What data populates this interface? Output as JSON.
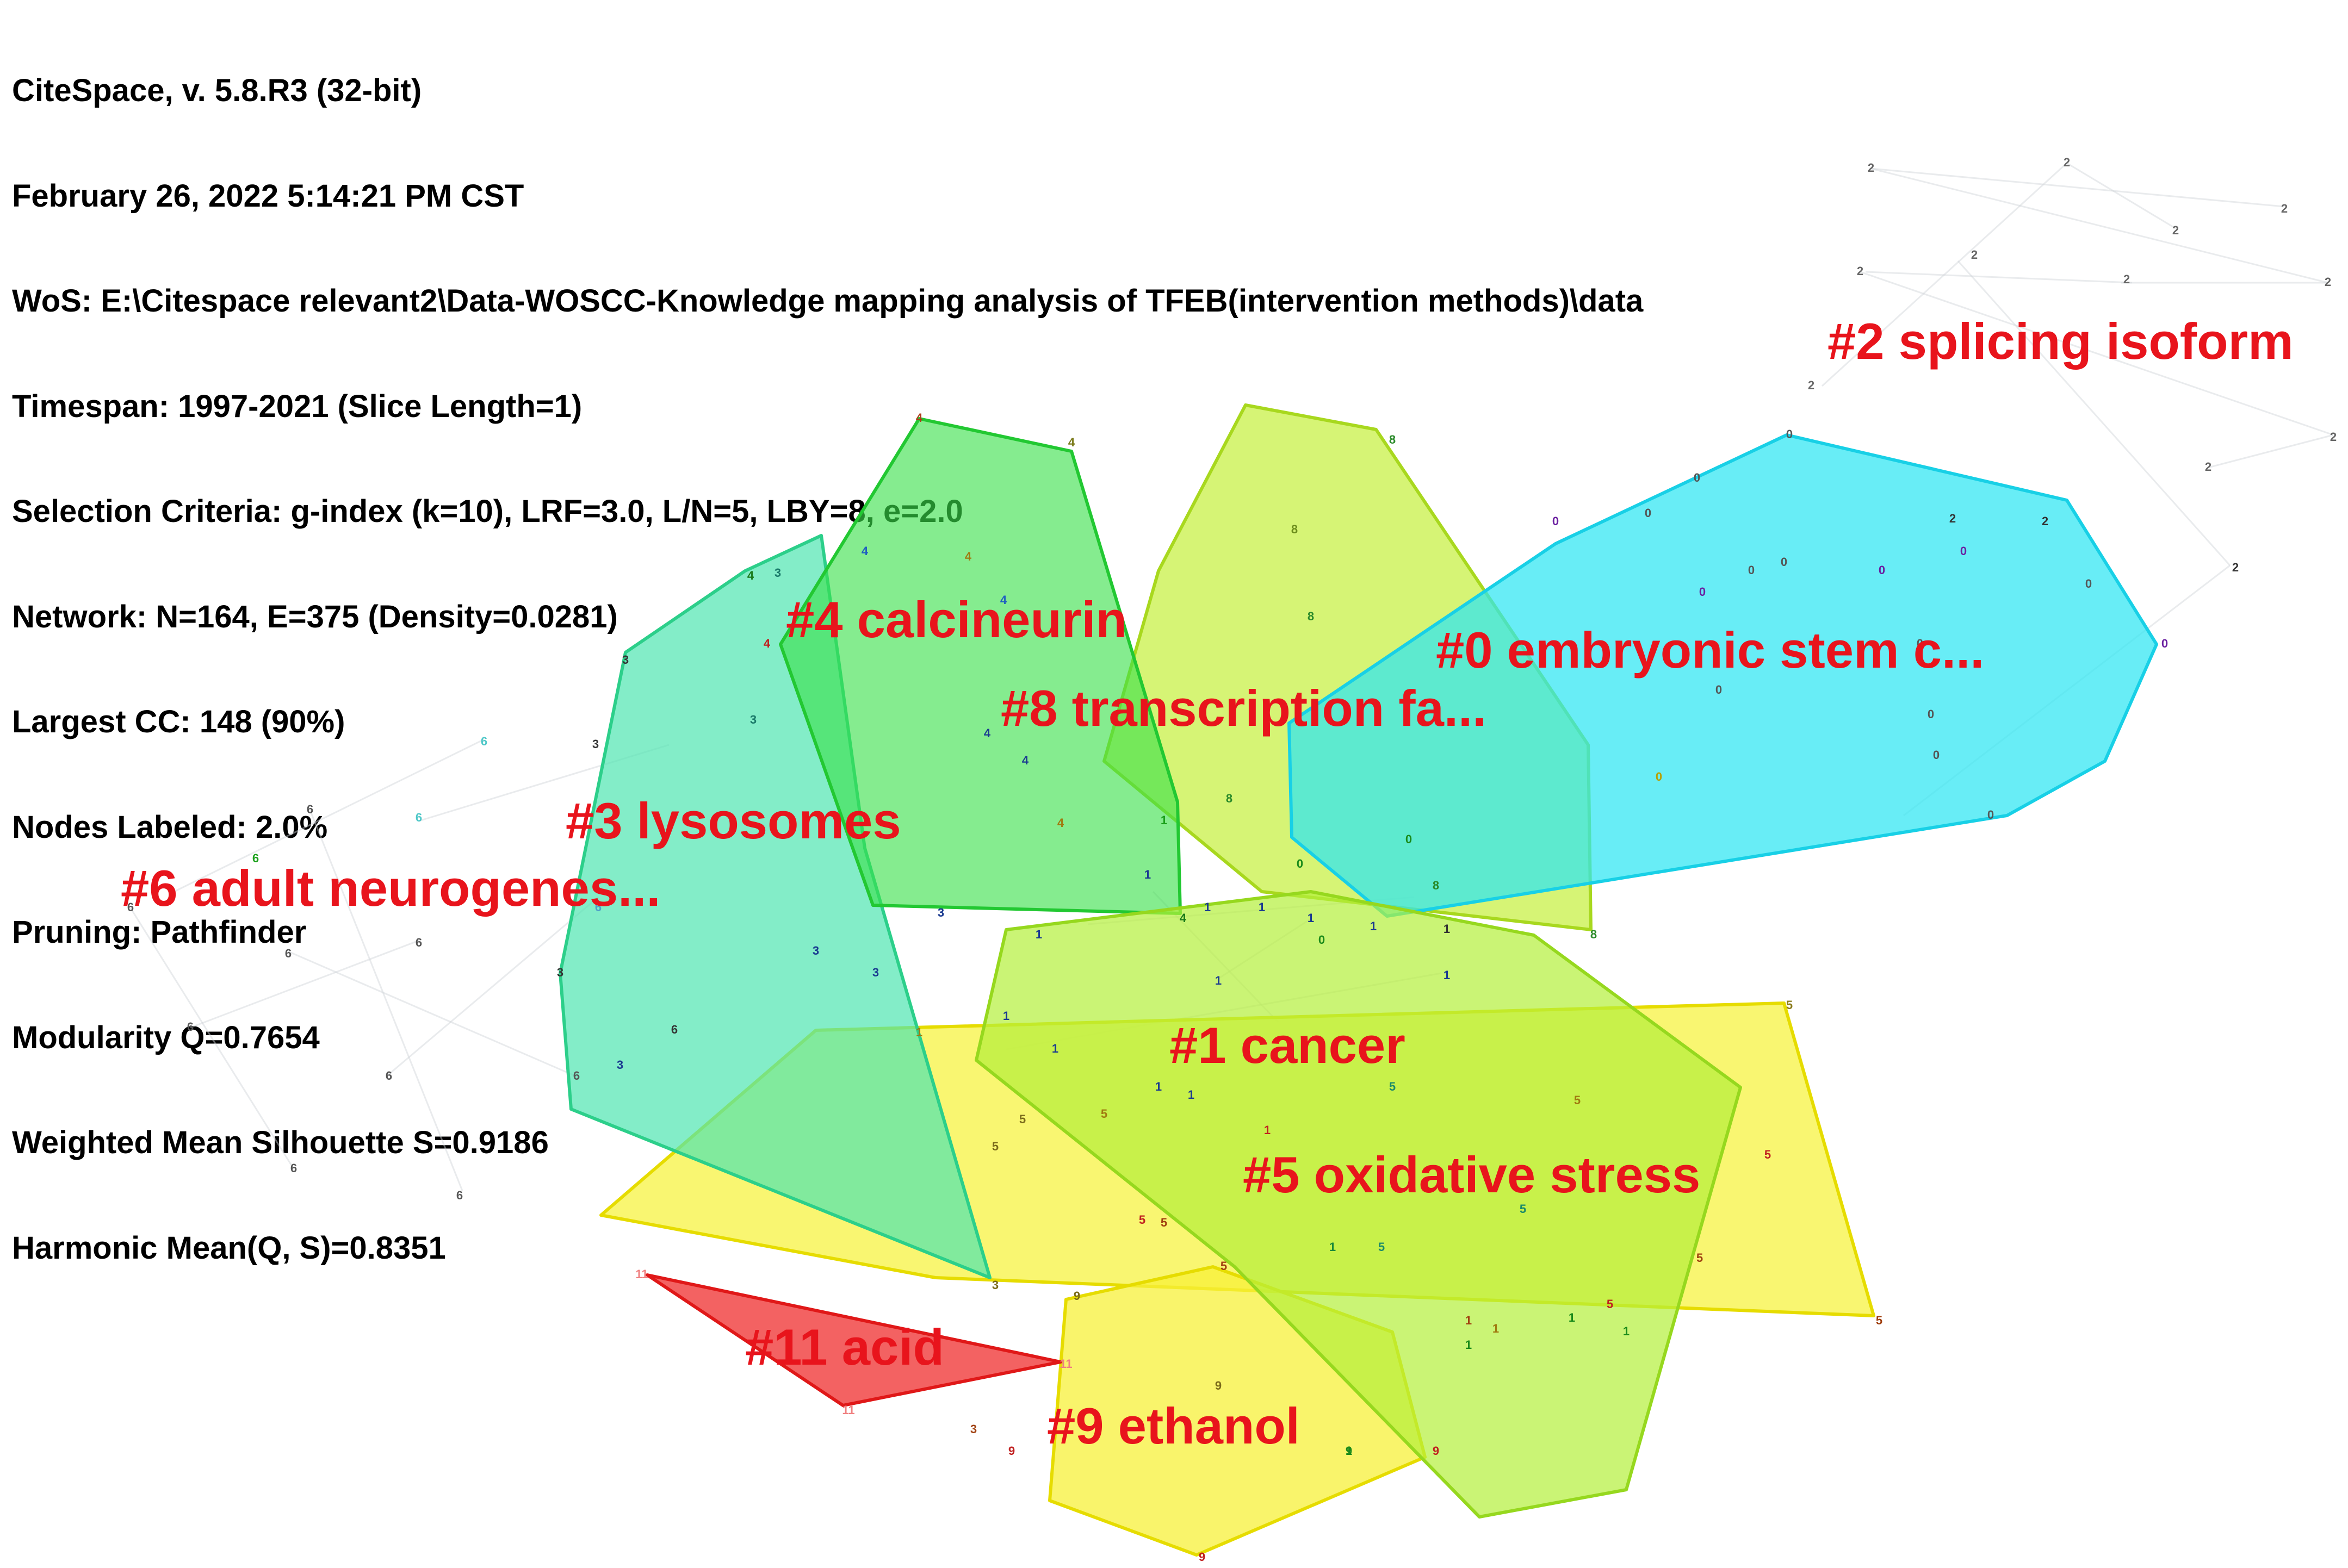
{
  "info": {
    "lines": [
      "CiteSpace, v. 5.8.R3 (32-bit)",
      "February 26, 2022 5:14:21 PM CST",
      "WoS: E:\\Citespace relevant2\\Data-WOSCC-Knowledge mapping analysis of TFEB(intervention methods)\\data",
      "Timespan: 1997-2021 (Slice Length=1)",
      "Selection Criteria: g-index (k=10), LRF=3.0, L/N=5, LBY=8, e=2.0",
      "Network: N=164, E=375 (Density=0.0281)",
      "Largest CC: 148 (90%)",
      "Nodes Labeled: 2.0%",
      "Pruning: Pathfinder",
      "Modularity Q=0.7654",
      "Weighted Mean Silhouette S=0.9186",
      "Harmonic Mean(Q, S)=0.8351"
    ]
  },
  "colors": {
    "label": "#e8141c",
    "c0": "#2ee6f2",
    "c1": "#b4f03a",
    "c3": "#4fe6b0",
    "c4": "#3ae04a",
    "c5": "#f7f23a",
    "c8": "#c4f03a",
    "c9": "#f7f03a",
    "c11": "#f04040"
  },
  "clusters": [
    {
      "id": "5",
      "label": "#5 oxidative stress"
    },
    {
      "id": "9",
      "label": "#9 ethanol"
    },
    {
      "id": "3",
      "label": "#3 lysosomes"
    },
    {
      "id": "8",
      "label": "#8 transcription fa..."
    },
    {
      "id": "0",
      "label": "#0 embryonic stem c..."
    },
    {
      "id": "4",
      "label": "#4 calcineurin"
    },
    {
      "id": "1",
      "label": "#1 cancer"
    },
    {
      "id": "11",
      "label": "#11 acid"
    },
    {
      "id": "2",
      "label": "#2 splicing isoform"
    },
    {
      "id": "6",
      "label": "#6 adult neurogenes..."
    }
  ],
  "nodes": {
    "c0": "0",
    "c1": "1",
    "c2": "2",
    "c3": "3",
    "c4": "4",
    "c5": "5",
    "c6": "6",
    "c8": "8",
    "c9": "9",
    "c11": "11"
  }
}
